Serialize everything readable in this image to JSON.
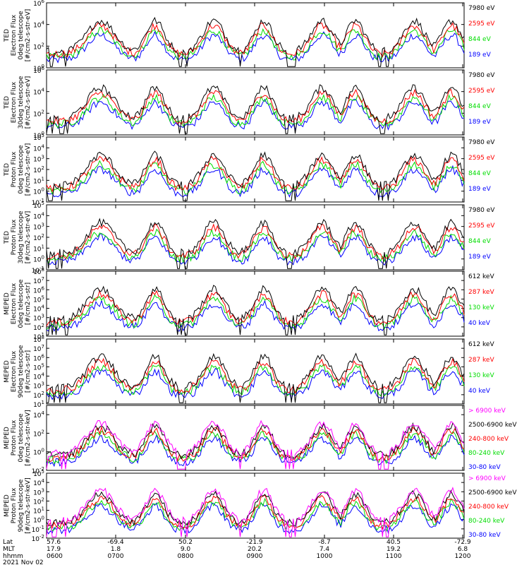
{
  "page": {
    "background": "#ffffff"
  },
  "chart_data": [
    {
      "type": "line",
      "ylabel": [
        "TED",
        "Electron Flux",
        "0deg telescope",
        "[#/cm2-s-str-eV]"
      ],
      "ylim": [
        1,
        1000000
      ],
      "yscale": "log",
      "yticks": [
        {
          "label": "10",
          "exp": "0",
          "v": 1
        },
        {
          "label": "10",
          "exp": "2",
          "v": 100
        },
        {
          "label": "10",
          "exp": "4",
          "v": 10000
        },
        {
          "label": "10",
          "exp": "6",
          "v": 1000000
        }
      ],
      "legend": [
        {
          "name": "7980 eV",
          "color": "#000000"
        },
        {
          "name": "2595 eV",
          "color": "#ff0000"
        },
        {
          "name": "844 eV",
          "color": "#00dd00"
        },
        {
          "name": "189 eV",
          "color": "#0000ff"
        }
      ]
    },
    {
      "type": "line",
      "ylabel": [
        "TED",
        "Electron Flux",
        "30deg telescope",
        "[#/cm2-s-str-eV]"
      ],
      "ylim": [
        1,
        1000000
      ],
      "yscale": "log",
      "yticks": [
        {
          "label": "10",
          "exp": "0",
          "v": 1
        },
        {
          "label": "10",
          "exp": "2",
          "v": 100
        },
        {
          "label": "10",
          "exp": "4",
          "v": 10000
        },
        {
          "label": "10",
          "exp": "6",
          "v": 1000000
        }
      ],
      "legend": [
        {
          "name": "7980 eV",
          "color": "#000000"
        },
        {
          "name": "2595 eV",
          "color": "#ff0000"
        },
        {
          "name": "844 eV",
          "color": "#00dd00"
        },
        {
          "name": "189 eV",
          "color": "#0000ff"
        }
      ]
    },
    {
      "type": "line",
      "ylabel": [
        "TED",
        "Proton Flux",
        "0deg telescope",
        "[#/cm2-s-str-eV]"
      ],
      "ylim": [
        0.1,
        100000
      ],
      "yscale": "log",
      "yticks": [
        {
          "label": "10",
          "exp": "-1",
          "v": 0.1
        },
        {
          "label": "10",
          "exp": "0",
          "v": 1
        },
        {
          "label": "10",
          "exp": "1",
          "v": 10
        },
        {
          "label": "10",
          "exp": "2",
          "v": 100
        },
        {
          "label": "10",
          "exp": "3",
          "v": 1000
        },
        {
          "label": "10",
          "exp": "4",
          "v": 10000
        },
        {
          "label": "10",
          "exp": "5",
          "v": 100000
        }
      ],
      "legend": [
        {
          "name": "7980 eV",
          "color": "#000000"
        },
        {
          "name": "2595 eV",
          "color": "#ff0000"
        },
        {
          "name": "844 eV",
          "color": "#00dd00"
        },
        {
          "name": "189 eV",
          "color": "#0000ff"
        }
      ]
    },
    {
      "type": "line",
      "ylabel": [
        "TED",
        "Proton Flux",
        "30deg telescope",
        "[#/cm2-s-str-eV]"
      ],
      "ylim": [
        0.1,
        100000
      ],
      "yscale": "log",
      "yticks": [
        {
          "label": "10",
          "exp": "-1",
          "v": 0.1
        },
        {
          "label": "10",
          "exp": "0",
          "v": 1
        },
        {
          "label": "10",
          "exp": "1",
          "v": 10
        },
        {
          "label": "10",
          "exp": "2",
          "v": 100
        },
        {
          "label": "10",
          "exp": "3",
          "v": 1000
        },
        {
          "label": "10",
          "exp": "4",
          "v": 10000
        },
        {
          "label": "10",
          "exp": "5",
          "v": 100000
        }
      ],
      "legend": [
        {
          "name": "7980 eV",
          "color": "#000000"
        },
        {
          "name": "2595 eV",
          "color": "#ff0000"
        },
        {
          "name": "844 eV",
          "color": "#00dd00"
        },
        {
          "name": "189 eV",
          "color": "#0000ff"
        }
      ]
    },
    {
      "type": "line",
      "ylabel": [
        "MEPED",
        "Electron Flux",
        "0deg telescope",
        "[#/cm2-s-str]"
      ],
      "ylim": [
        10,
        100000000
      ],
      "yscale": "log",
      "yticks": [
        {
          "label": "10",
          "exp": "1",
          "v": 10
        },
        {
          "label": "10",
          "exp": "2",
          "v": 100
        },
        {
          "label": "10",
          "exp": "3",
          "v": 1000
        },
        {
          "label": "10",
          "exp": "4",
          "v": 10000
        },
        {
          "label": "10",
          "exp": "5",
          "v": 100000
        },
        {
          "label": "10",
          "exp": "6",
          "v": 1000000
        },
        {
          "label": "10",
          "exp": "7",
          "v": 10000000
        },
        {
          "label": "10",
          "exp": "8",
          "v": 100000000
        }
      ],
      "legend": [
        {
          "name": "612 keV",
          "color": "#000000"
        },
        {
          "name": "287 keV",
          "color": "#ff0000"
        },
        {
          "name": "130 keV",
          "color": "#00dd00"
        },
        {
          "name": "40 keV",
          "color": "#0000ff"
        }
      ]
    },
    {
      "type": "line",
      "ylabel": [
        "MEPED",
        "Electron Flux",
        "90deg telescope",
        "[#/cm2-s-str]"
      ],
      "ylim": [
        10,
        100000000
      ],
      "yscale": "log",
      "yticks": [
        {
          "label": "10",
          "exp": "1",
          "v": 10
        },
        {
          "label": "10",
          "exp": "2",
          "v": 100
        },
        {
          "label": "10",
          "exp": "3",
          "v": 1000
        },
        {
          "label": "10",
          "exp": "4",
          "v": 10000
        },
        {
          "label": "10",
          "exp": "5",
          "v": 100000
        },
        {
          "label": "10",
          "exp": "6",
          "v": 1000000
        },
        {
          "label": "10",
          "exp": "7",
          "v": 10000000
        },
        {
          "label": "10",
          "exp": "8",
          "v": 100000000
        }
      ],
      "legend": [
        {
          "name": "612 keV",
          "color": "#000000"
        },
        {
          "name": "287 keV",
          "color": "#ff0000"
        },
        {
          "name": "130 keV",
          "color": "#00dd00"
        },
        {
          "name": "40 keV",
          "color": "#0000ff"
        }
      ]
    },
    {
      "type": "line",
      "ylabel": [
        "MEPED",
        "Proton Flux",
        "0deg telescope",
        "[#/cm2-s-str-keV]"
      ],
      "ylim": [
        0.01,
        100000
      ],
      "yscale": "log",
      "yticks": [
        {
          "label": "10",
          "exp": "-2",
          "v": 0.01
        },
        {
          "label": "10",
          "exp": "0",
          "v": 1
        },
        {
          "label": "10",
          "exp": "2",
          "v": 100
        },
        {
          "label": "10",
          "exp": "4",
          "v": 10000
        }
      ],
      "legend": [
        {
          "name": "> 6900 keV",
          "color": "#ff00ff"
        },
        {
          "name": "2500-6900 keV",
          "color": "#000000"
        },
        {
          "name": "240-800 keV",
          "color": "#ff0000"
        },
        {
          "name": "80-240 keV",
          "color": "#00dd00"
        },
        {
          "name": "30-80 keV",
          "color": "#0000ff"
        }
      ]
    },
    {
      "type": "line",
      "ylabel": [
        "MEPED",
        "Proton Flux",
        "90deg telescope",
        "[#/cm2-s-str-keV]"
      ],
      "ylim": [
        0.01,
        100000
      ],
      "yscale": "log",
      "yticks": [
        {
          "label": "10",
          "exp": "-2",
          "v": 0.01
        },
        {
          "label": "10",
          "exp": "-1",
          "v": 0.1
        },
        {
          "label": "10",
          "exp": "0",
          "v": 1
        },
        {
          "label": "10",
          "exp": "1",
          "v": 10
        },
        {
          "label": "10",
          "exp": "2",
          "v": 100
        },
        {
          "label": "10",
          "exp": "3",
          "v": 1000
        },
        {
          "label": "10",
          "exp": "4",
          "v": 10000
        },
        {
          "label": "10",
          "exp": "5",
          "v": 100000
        }
      ],
      "legend": [
        {
          "name": "> 6900 keV",
          "color": "#ff00ff"
        },
        {
          "name": "2500-6900 keV",
          "color": "#000000"
        },
        {
          "name": "240-800 keV",
          "color": "#ff0000"
        },
        {
          "name": "80-240 keV",
          "color": "#00dd00"
        },
        {
          "name": "30-80 keV",
          "color": "#0000ff"
        }
      ]
    }
  ],
  "x_axis": {
    "row_labels": [
      "Lat",
      "MLT",
      "hhmm"
    ],
    "ticks": [
      {
        "lat": "57.6",
        "mlt": "17.9",
        "hhmm": "0600"
      },
      {
        "lat": "-69.4",
        "mlt": "1.8",
        "hhmm": "0700"
      },
      {
        "lat": "50.2",
        "mlt": "9.0",
        "hhmm": "0800"
      },
      {
        "lat": "-21.9",
        "mlt": "20.2",
        "hhmm": "0900"
      },
      {
        "lat": "-8.7",
        "mlt": "7.4",
        "hhmm": "1000"
      },
      {
        "lat": "40.5",
        "mlt": "19.2",
        "hhmm": "1100"
      },
      {
        "lat": "-72.9",
        "mlt": "6.8",
        "hhmm": "1200"
      }
    ],
    "date": "2021 Nov 02"
  }
}
